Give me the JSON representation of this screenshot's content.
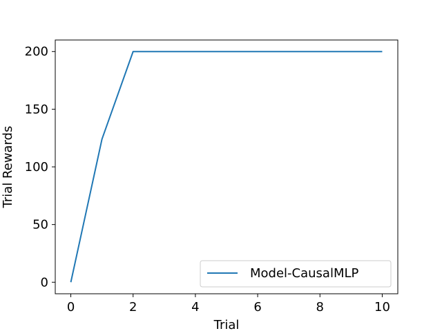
{
  "chart_data": {
    "type": "line",
    "xlabel": "Trial",
    "ylabel": "Trial Rewards",
    "xlim": [
      -0.5,
      10.5
    ],
    "ylim": [
      -10,
      210
    ],
    "x_ticks": [
      0,
      2,
      4,
      6,
      8,
      10
    ],
    "y_ticks": [
      0,
      50,
      100,
      150,
      200
    ],
    "grid": false,
    "legend_position": "bottom-right",
    "series": [
      {
        "name": "Model-CausalMLP",
        "color": "#1f77b4",
        "x": [
          0,
          1,
          2,
          3,
          4,
          5,
          6,
          7,
          8,
          9,
          10
        ],
        "y": [
          0,
          124,
          200,
          200,
          200,
          200,
          200,
          200,
          200,
          200,
          200
        ]
      }
    ]
  }
}
